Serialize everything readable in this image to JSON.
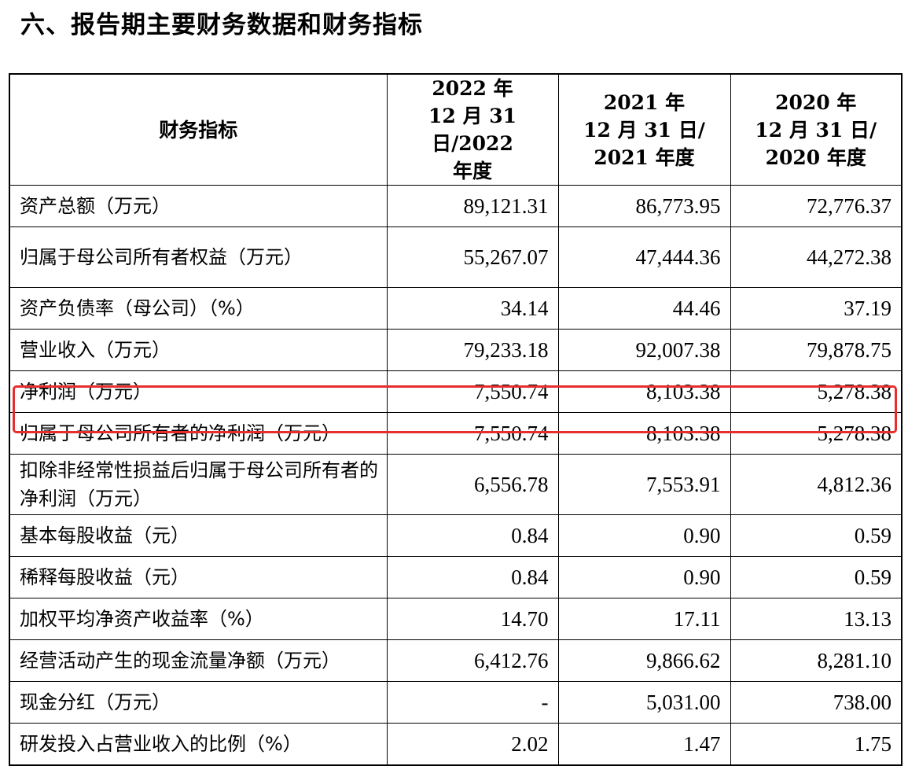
{
  "title": "六、报告期主要财务数据和财务指标",
  "table": {
    "headers": [
      {
        "lines": [
          "财务指标"
        ]
      },
      {
        "lines": [
          "2022 年",
          "12 月 31 日/2022",
          "年度"
        ]
      },
      {
        "lines": [
          "2021 年",
          "12 月 31 日/",
          "2021 年度"
        ]
      },
      {
        "lines": [
          "2020 年",
          "12 月 31 日/",
          "2020 年度"
        ]
      }
    ],
    "rows": [
      {
        "label": "资产总额（万元）",
        "values": [
          "89,121.31",
          "86,773.95",
          "72,776.37"
        ]
      },
      {
        "label": "归属于母公司所有者权益（万元）",
        "values": [
          "55,267.07",
          "47,444.36",
          "44,272.38"
        ]
      },
      {
        "label": "资产负债率（母公司）（%）",
        "values": [
          "34.14",
          "44.46",
          "37.19"
        ]
      },
      {
        "label": "营业收入（万元）",
        "values": [
          "79,233.18",
          "92,007.38",
          "79,878.75"
        ]
      },
      {
        "label": "净利润（万元）",
        "values": [
          "7,550.74",
          "8,103.38",
          "5,278.38"
        ]
      },
      {
        "label": "归属于母公司所有者的净利润（万元）",
        "values": [
          "7,550.74",
          "8,103.38",
          "5,278.38"
        ]
      },
      {
        "label": "扣除非经常性损益后归属于母公司所有者的净利润（万元）",
        "values": [
          "6,556.78",
          "7,553.91",
          "4,812.36"
        ]
      },
      {
        "label": "基本每股收益（元）",
        "values": [
          "0.84",
          "0.90",
          "0.59"
        ]
      },
      {
        "label": "稀释每股收益（元）",
        "values": [
          "0.84",
          "0.90",
          "0.59"
        ]
      },
      {
        "label": "加权平均净资产收益率（%）",
        "values": [
          "14.70",
          "17.11",
          "13.13"
        ]
      },
      {
        "label": "经营活动产生的现金流量净额（万元）",
        "values": [
          "6,412.76",
          "9,866.62",
          "8,281.10"
        ]
      },
      {
        "label": "现金分红（万元）",
        "values": [
          "-",
          "5,031.00",
          "738.00"
        ]
      },
      {
        "label": "研发投入占营业收入的比例（%）",
        "values": [
          "2.02",
          "1.47",
          "1.75"
        ]
      }
    ]
  },
  "highlight": {
    "row_index": 5,
    "color": "#e62e2e"
  }
}
